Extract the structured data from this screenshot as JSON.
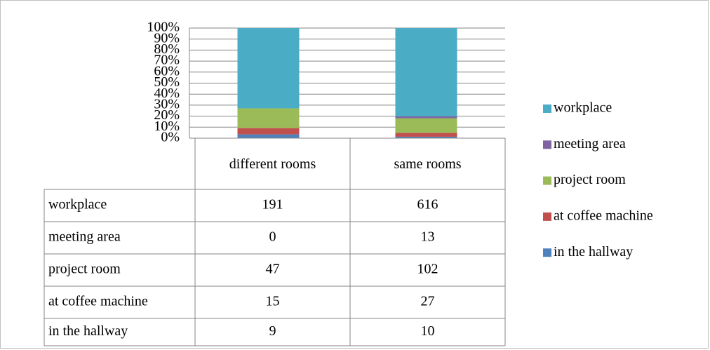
{
  "chart_data": {
    "type": "bar",
    "stacking": "percent",
    "categories": [
      "different rooms",
      "same rooms"
    ],
    "series": [
      {
        "name": "workplace",
        "color": "#4bacc6",
        "values": [
          191,
          616
        ]
      },
      {
        "name": "meeting area",
        "color": "#8064a2",
        "values": [
          0,
          13
        ]
      },
      {
        "name": "project room",
        "color": "#9bbb59",
        "values": [
          47,
          102
        ]
      },
      {
        "name": "at coffee machine",
        "color": "#c0504d",
        "values": [
          15,
          27
        ]
      },
      {
        "name": "in the hallway",
        "color": "#4f81bd",
        "values": [
          9,
          10
        ]
      }
    ],
    "ylim": [
      0,
      100
    ],
    "yticks": [
      {
        "value": 0,
        "label": "0%"
      },
      {
        "value": 10,
        "label": "10%"
      },
      {
        "value": 20,
        "label": "20%"
      },
      {
        "value": 30,
        "label": "30%"
      },
      {
        "value": 40,
        "label": "40%"
      },
      {
        "value": 50,
        "label": "50%"
      },
      {
        "value": 60,
        "label": "60%"
      },
      {
        "value": 70,
        "label": "70%"
      },
      {
        "value": 80,
        "label": "80%"
      },
      {
        "value": 90,
        "label": "90%"
      },
      {
        "value": 100,
        "label": "100%"
      }
    ],
    "grid": true,
    "legend": "right",
    "data_table": true
  }
}
